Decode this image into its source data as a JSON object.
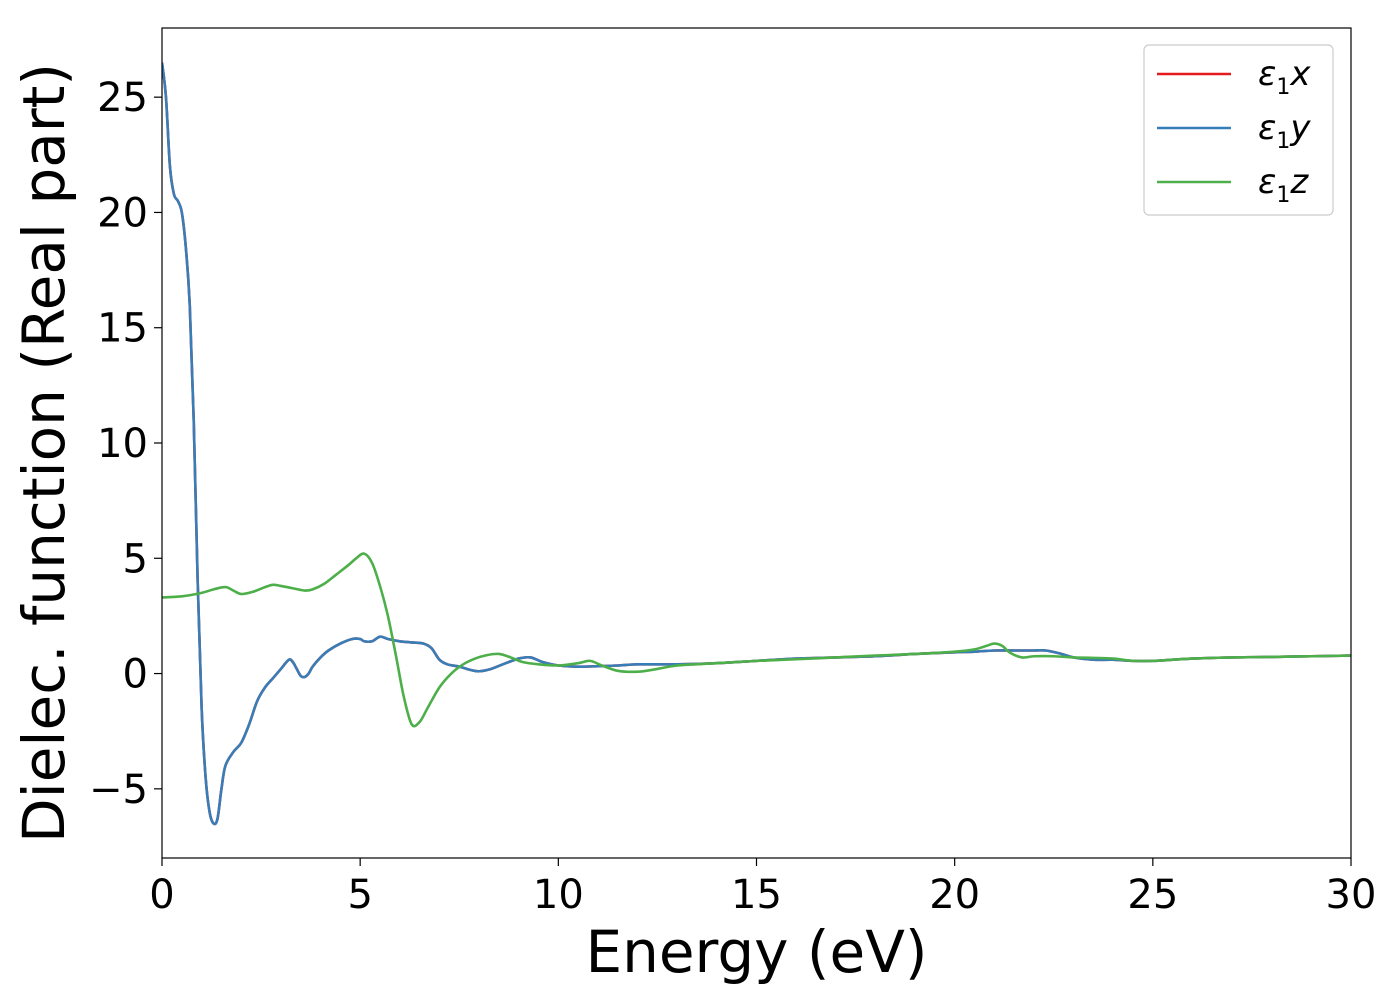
{
  "chart_data": {
    "type": "line",
    "title": "",
    "xlabel": "Energy (eV)",
    "ylabel": "Dielec. function (Real part)",
    "xlim": [
      0,
      30
    ],
    "ylim": [
      -8,
      28
    ],
    "xticks": [
      0,
      5,
      10,
      15,
      20,
      25,
      30
    ],
    "xtick_labels": [
      "0",
      "5",
      "10",
      "15",
      "20",
      "25",
      "30"
    ],
    "yticks": [
      -5,
      0,
      5,
      10,
      15,
      20,
      25
    ],
    "ytick_labels": [
      "−5",
      "0",
      "5",
      "10",
      "15",
      "20",
      "25"
    ],
    "grid": false,
    "legend": "top-right",
    "series": [
      {
        "name": "ε",
        "sub": "1",
        "axis": "x",
        "color": "#e41a1c",
        "x": [
          0,
          0.1,
          0.2,
          0.3,
          0.4,
          0.5,
          0.6,
          0.7,
          0.8,
          0.9,
          1.0,
          1.1,
          1.2,
          1.3,
          1.4,
          1.5,
          1.6,
          1.8,
          2.0,
          2.2,
          2.4,
          2.6,
          2.8,
          3.0,
          3.2,
          3.3,
          3.4,
          3.5,
          3.6,
          3.7,
          3.8,
          4.0,
          4.2,
          4.5,
          4.8,
          5.0,
          5.1,
          5.3,
          5.5,
          5.7,
          6.0,
          6.3,
          6.6,
          6.8,
          7.0,
          7.2,
          7.5,
          7.8,
          8.0,
          8.3,
          8.6,
          9.0,
          9.3,
          9.6,
          10.0,
          10.5,
          11.0,
          11.5,
          12.0,
          13.0,
          14.0,
          15.0,
          16.0,
          17.0,
          18.0,
          19.0,
          20.0,
          20.5,
          21.0,
          21.5,
          22.0,
          22.3,
          22.7,
          23.0,
          23.5,
          24.0,
          24.5,
          25.0,
          25.5,
          26.0,
          27.0,
          28.0,
          29.0,
          30.0
        ],
        "y": [
          26.5,
          25.0,
          22.0,
          20.8,
          20.5,
          20.0,
          18.5,
          16.0,
          11.0,
          4.0,
          -1.5,
          -4.5,
          -6.0,
          -6.5,
          -6.3,
          -5.0,
          -4.0,
          -3.4,
          -3.0,
          -2.2,
          -1.2,
          -0.6,
          -0.2,
          0.2,
          0.6,
          0.5,
          0.2,
          -0.1,
          -0.15,
          0.0,
          0.3,
          0.7,
          1.0,
          1.3,
          1.5,
          1.5,
          1.4,
          1.4,
          1.6,
          1.5,
          1.4,
          1.35,
          1.3,
          1.1,
          0.6,
          0.4,
          0.3,
          0.15,
          0.1,
          0.2,
          0.4,
          0.65,
          0.7,
          0.5,
          0.35,
          0.3,
          0.32,
          0.35,
          0.4,
          0.4,
          0.45,
          0.55,
          0.65,
          0.7,
          0.75,
          0.85,
          0.92,
          0.95,
          1.0,
          1.0,
          1.0,
          1.0,
          0.85,
          0.7,
          0.6,
          0.6,
          0.55,
          0.55,
          0.6,
          0.65,
          0.7,
          0.72,
          0.75,
          0.78
        ]
      },
      {
        "name": "ε",
        "sub": "1",
        "axis": "y",
        "color": "#377eb8",
        "x": [
          0,
          0.1,
          0.2,
          0.3,
          0.4,
          0.5,
          0.6,
          0.7,
          0.8,
          0.9,
          1.0,
          1.1,
          1.2,
          1.3,
          1.4,
          1.5,
          1.6,
          1.8,
          2.0,
          2.2,
          2.4,
          2.6,
          2.8,
          3.0,
          3.2,
          3.3,
          3.4,
          3.5,
          3.6,
          3.7,
          3.8,
          4.0,
          4.2,
          4.5,
          4.8,
          5.0,
          5.1,
          5.3,
          5.5,
          5.7,
          6.0,
          6.3,
          6.6,
          6.8,
          7.0,
          7.2,
          7.5,
          7.8,
          8.0,
          8.3,
          8.6,
          9.0,
          9.3,
          9.6,
          10.0,
          10.5,
          11.0,
          11.5,
          12.0,
          13.0,
          14.0,
          15.0,
          16.0,
          17.0,
          18.0,
          19.0,
          20.0,
          20.5,
          21.0,
          21.5,
          22.0,
          22.3,
          22.7,
          23.0,
          23.5,
          24.0,
          24.5,
          25.0,
          25.5,
          26.0,
          27.0,
          28.0,
          29.0,
          30.0
        ],
        "y": [
          26.5,
          25.0,
          22.0,
          20.8,
          20.5,
          20.0,
          18.5,
          16.0,
          11.0,
          4.0,
          -1.5,
          -4.5,
          -6.0,
          -6.5,
          -6.3,
          -5.0,
          -4.0,
          -3.4,
          -3.0,
          -2.2,
          -1.2,
          -0.6,
          -0.2,
          0.2,
          0.6,
          0.5,
          0.2,
          -0.1,
          -0.15,
          0.0,
          0.3,
          0.7,
          1.0,
          1.3,
          1.5,
          1.5,
          1.4,
          1.4,
          1.6,
          1.5,
          1.4,
          1.35,
          1.3,
          1.1,
          0.6,
          0.4,
          0.3,
          0.15,
          0.1,
          0.2,
          0.4,
          0.65,
          0.7,
          0.5,
          0.35,
          0.3,
          0.32,
          0.35,
          0.4,
          0.4,
          0.45,
          0.55,
          0.65,
          0.7,
          0.75,
          0.85,
          0.92,
          0.95,
          1.0,
          1.0,
          1.0,
          1.0,
          0.85,
          0.7,
          0.6,
          0.6,
          0.55,
          0.55,
          0.6,
          0.65,
          0.7,
          0.72,
          0.75,
          0.78
        ]
      },
      {
        "name": "ε",
        "sub": "1",
        "axis": "z",
        "color": "#4daf4a",
        "x": [
          0,
          0.5,
          1.0,
          1.3,
          1.6,
          1.8,
          2.0,
          2.3,
          2.6,
          2.8,
          3.0,
          3.3,
          3.6,
          3.8,
          4.1,
          4.4,
          4.7,
          4.9,
          5.1,
          5.3,
          5.5,
          5.7,
          5.9,
          6.1,
          6.3,
          6.5,
          6.7,
          7.0,
          7.3,
          7.6,
          7.9,
          8.2,
          8.5,
          8.8,
          9.1,
          9.5,
          10.0,
          10.5,
          10.8,
          11.1,
          11.5,
          12.0,
          12.5,
          13.0,
          14.0,
          15.0,
          16.0,
          17.0,
          18.0,
          19.0,
          20.0,
          20.5,
          20.8,
          21.0,
          21.2,
          21.4,
          21.7,
          22.0,
          22.5,
          23.0,
          23.5,
          24.0,
          24.5,
          25.0,
          25.5,
          26.0,
          27.0,
          28.0,
          29.0,
          30.0
        ],
        "y": [
          3.3,
          3.35,
          3.5,
          3.65,
          3.75,
          3.6,
          3.45,
          3.55,
          3.75,
          3.85,
          3.8,
          3.7,
          3.6,
          3.65,
          3.9,
          4.3,
          4.7,
          5.0,
          5.2,
          4.8,
          3.8,
          2.5,
          0.8,
          -1.0,
          -2.2,
          -2.1,
          -1.5,
          -0.6,
          0.0,
          0.4,
          0.65,
          0.8,
          0.85,
          0.7,
          0.5,
          0.4,
          0.35,
          0.45,
          0.55,
          0.35,
          0.12,
          0.08,
          0.2,
          0.35,
          0.45,
          0.55,
          0.62,
          0.7,
          0.78,
          0.85,
          0.95,
          1.05,
          1.2,
          1.3,
          1.2,
          0.9,
          0.7,
          0.75,
          0.75,
          0.7,
          0.68,
          0.65,
          0.55,
          0.55,
          0.6,
          0.65,
          0.7,
          0.72,
          0.75,
          0.78
        ]
      }
    ]
  }
}
